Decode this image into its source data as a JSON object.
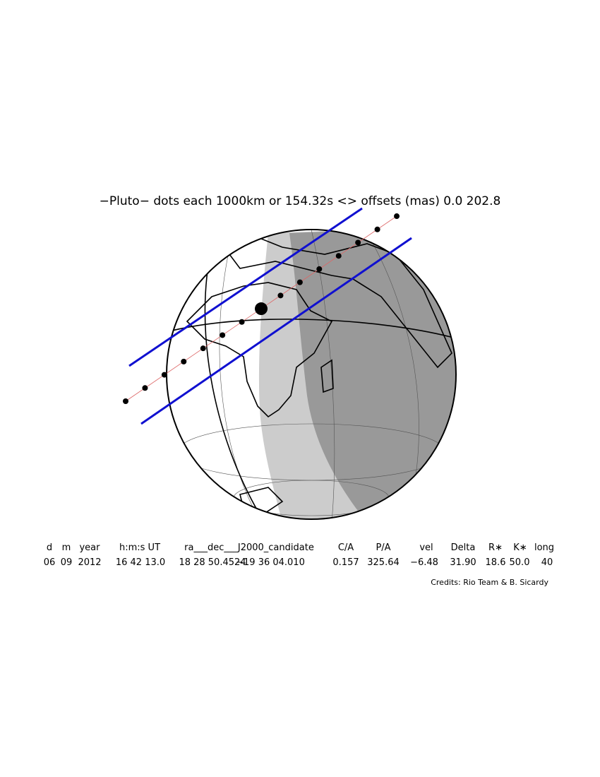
{
  "title": "−Pluto− dots each 1000km or 154.32s <> offsets (mas)      0.0   202.8",
  "table": {
    "headers": [
      "d",
      "m",
      "year",
      "h:m:s UT",
      "ra___dec___J2000_candidate",
      "C/A",
      "P/A",
      "vel",
      "Delta",
      "R∗",
      "K∗",
      "long"
    ],
    "values": [
      "06",
      "09",
      "2012",
      "16 42 13.0",
      "18 28 50.4524",
      "−19 36 04.010",
      "0.157",
      "325.64",
      "−6.48",
      "31.90",
      "18.6",
      "50.0",
      "40"
    ]
  },
  "credits": "Credits: Rio Team & B. Sicardy"
}
